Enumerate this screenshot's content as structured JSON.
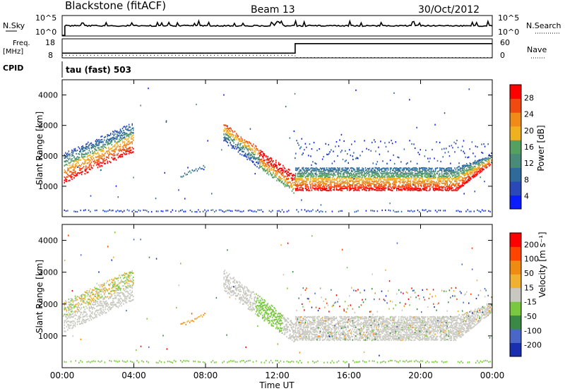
{
  "header": {
    "station": "Blackstone (fitACF)",
    "beam": "Beam 13",
    "date": "30/Oct/2012"
  },
  "top_panels": {
    "nsky_label": "N.Sky",
    "nsky_ticks": [
      "10^5",
      "10^0"
    ],
    "nsearch_label": "N.Search",
    "nsearch_ticks": [
      "10^5",
      "10^0"
    ],
    "freq_label_line1": "Freq.",
    "freq_label_line2": "[MHz]",
    "freq_ticks": [
      "18",
      "8"
    ],
    "nave_label": "Nave",
    "nave_ticks": [
      "60",
      "0"
    ],
    "cpid_label": "CPID",
    "cpid_value": "tau (fast) 503"
  },
  "colors": {
    "power_scale": [
      "#0a1dff",
      "#2a48b8",
      "#2e6a9a",
      "#4a8a78",
      "#55a060",
      "#f0b020",
      "#f08a18",
      "#f04a10",
      "#ff0000"
    ],
    "velocity_scale": [
      "#1a2fb0",
      "#4a67c8",
      "#3a8a46",
      "#7ac840",
      "#c8c8c0",
      "#f0b030",
      "#f08a10",
      "#ff4400",
      "#ff0000"
    ],
    "axis": "#000000"
  },
  "chart_data": [
    {
      "type": "line",
      "name": "N.Sky / N.Search",
      "x": [
        "00:00",
        "12:00",
        "13:00",
        "00:00"
      ],
      "ylim_labels": [
        "10^0",
        "10^5"
      ],
      "series": []
    },
    {
      "type": "line",
      "name": "Freq / Nave",
      "series": [
        {
          "name": "Freq. [MHz]",
          "x": [
            0,
            13,
            13,
            24
          ],
          "values": [
            10.5,
            10.5,
            15.5,
            15.5
          ]
        },
        {
          "name": "Nave",
          "x": [
            0,
            13,
            13,
            24
          ],
          "values": [
            8,
            8,
            1,
            1
          ]
        }
      ],
      "ylim_left": [
        8,
        18
      ],
      "ylim_right": [
        0,
        60
      ]
    },
    {
      "type": "heatmap",
      "name": "Power",
      "xlabel": "",
      "ylabel": "Slant Range [km]",
      "x_ticks": [
        "00:00",
        "04:00",
        "08:00",
        "12:00",
        "16:00",
        "20:00",
        "00:00"
      ],
      "y_ticks": [
        "1000",
        "2000",
        "3000",
        "4000"
      ],
      "ylim": [
        0,
        4500
      ],
      "colorbar_label": "Power [dB]",
      "colorbar_ticks": [
        "28",
        "24",
        "20",
        "16",
        "12",
        "8",
        "4"
      ]
    },
    {
      "type": "heatmap",
      "name": "Velocity",
      "xlabel": "Time UT",
      "ylabel": "Slant Range [km]",
      "x_ticks": [
        "00:00",
        "04:00",
        "08:00",
        "12:00",
        "16:00",
        "20:00",
        "00:00"
      ],
      "y_ticks": [
        "1000",
        "2000",
        "3000",
        "4000"
      ],
      "ylim": [
        0,
        4500
      ],
      "colorbar_label": "Velocity [m s⁻¹]",
      "colorbar_ticks": [
        "200",
        "100",
        "50",
        "15",
        "-15",
        "-50",
        "-100",
        "-200"
      ]
    }
  ]
}
